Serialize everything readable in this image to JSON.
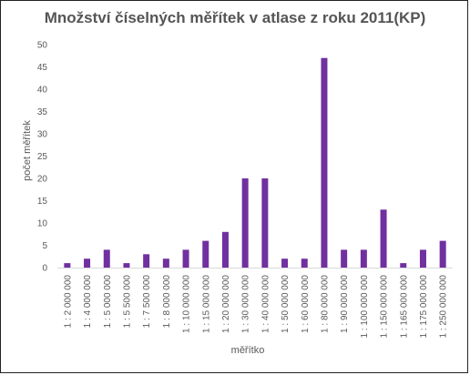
{
  "chart_data": {
    "type": "bar",
    "title": "Množství číselných měřítek v atlase z roku 2011(KP)",
    "xlabel": "měřítko",
    "ylabel": "počet měřítek",
    "ylim": [
      0,
      50
    ],
    "ytick_step": 5,
    "grid": false,
    "bar_color": "#7030a0",
    "categories": [
      "1 : 2 000 000",
      "1 : 4 000 000",
      "1 : 5 000 000",
      "1 : 5 500 000",
      "1 : 7 500 000",
      "1 : 8 000 000",
      "1 : 10 000 000",
      "1 : 15 000 000",
      "1 : 20 000 000",
      "1 : 30 000 000",
      "1 : 40 000 000",
      "1 : 50 000 000",
      "1 : 60 000 000",
      "1 : 80 000 000",
      "1 : 90 000 000",
      "1 : 100 000 000",
      "1 : 150 000 000",
      "1 : 165 000 000",
      "1 : 175 000 000",
      "1 : 250 000 000"
    ],
    "values": [
      1,
      2,
      4,
      1,
      3,
      2,
      4,
      6,
      8,
      20,
      20,
      2,
      2,
      47,
      4,
      4,
      13,
      1,
      4,
      6
    ]
  }
}
